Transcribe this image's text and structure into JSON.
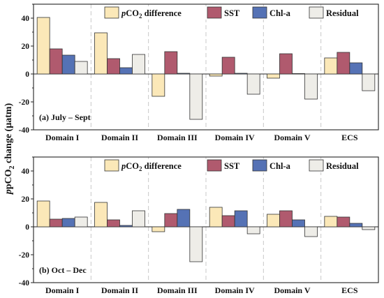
{
  "figure": {
    "ylabel_main": "pCO",
    "ylabel_sub": "2",
    "ylabel_rest": " change (µatm)"
  },
  "legend": {
    "pco2_italic": "p",
    "pco2_main": "CO",
    "pco2_sub": "2",
    "pco2_rest": " difference"
  },
  "colors": {
    "pCO2 difference": "#fbe8b8",
    "SST": "#b05a6e",
    "Chl-a": "#5572b5",
    "Residual": "#eeede8"
  },
  "chart_data": [
    {
      "type": "bar",
      "panel_label": "(a) July – Sept",
      "categories": [
        "Domain I",
        "Domain II",
        "Domain III",
        "Domain IV",
        "Domain V",
        "ECS"
      ],
      "ylim": [
        -40,
        50
      ],
      "yticks": [
        -40,
        -20,
        0,
        20,
        40
      ],
      "legend_position": "top-right",
      "series": [
        {
          "name": "pCO2 difference",
          "values": [
            40.5,
            29.5,
            -16,
            -1.5,
            -3,
            11.5
          ]
        },
        {
          "name": "SST",
          "values": [
            18,
            11,
            16,
            12,
            14.5,
            15.5
          ]
        },
        {
          "name": "Chl-a",
          "values": [
            13.5,
            4.5,
            0.5,
            0.5,
            0.3,
            8
          ]
        },
        {
          "name": "Residual",
          "values": [
            9,
            14,
            -32.5,
            -14.5,
            -18,
            -12
          ]
        }
      ]
    },
    {
      "type": "bar",
      "panel_label": "(b) Oct – Dec",
      "categories": [
        "Domain I",
        "Domain II",
        "Domain III",
        "Domain IV",
        "Domain V",
        "ECS"
      ],
      "ylim": [
        -40,
        50
      ],
      "yticks": [
        -40,
        -20,
        0,
        20,
        40
      ],
      "legend_position": "top-right",
      "series": [
        {
          "name": "pCO2 difference",
          "values": [
            18.5,
            17.5,
            -3.5,
            14,
            9,
            7.5
          ]
        },
        {
          "name": "SST",
          "values": [
            5.5,
            5,
            9.5,
            8,
            11.5,
            7
          ]
        },
        {
          "name": "Chl-a",
          "values": [
            6,
            1,
            12.5,
            11.5,
            5,
            2.5
          ]
        },
        {
          "name": "Residual",
          "values": [
            7,
            11.5,
            -25,
            -5,
            -7,
            -2
          ]
        }
      ]
    }
  ]
}
